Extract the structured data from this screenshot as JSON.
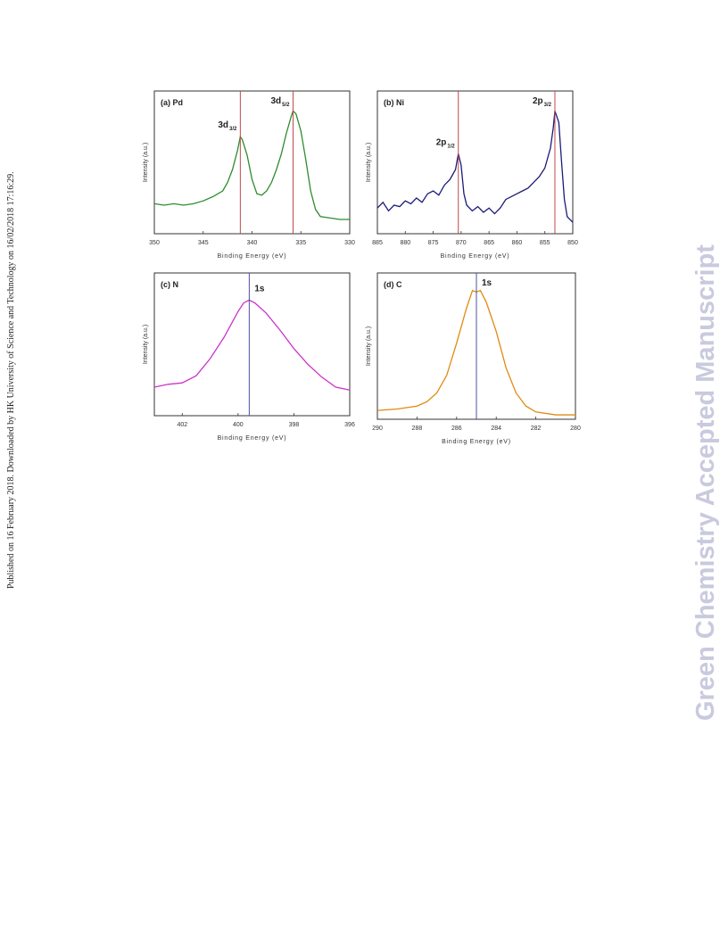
{
  "side_note": "Published on 16 February 2018. Downloaded by HK University of Science and Technology on 16/02/2018 17:16:29.",
  "watermark": "Green Chemistry Accepted Manuscript",
  "chart_data": [
    {
      "type": "line",
      "title": "(a) Pd",
      "x_label": "Binding Energy (eV)",
      "y_label": "Intensity (a.u.)",
      "xlim": [
        350,
        330
      ],
      "xticks": [
        350,
        345,
        340,
        335,
        330
      ],
      "ylim": [
        0,
        100
      ],
      "x": [
        350,
        349,
        348,
        347,
        346,
        345,
        344,
        343,
        342.5,
        342,
        341.5,
        341.2,
        341,
        340.5,
        340,
        339.5,
        339,
        338.5,
        338,
        337.5,
        337,
        336.5,
        336,
        335.8,
        335.5,
        335,
        334.5,
        334,
        333.5,
        333,
        332,
        331,
        330
      ],
      "series": [
        {
          "color": "#2e8b2e",
          "values": [
            21,
            20,
            21,
            20,
            21,
            23,
            26,
            30,
            36,
            45,
            58,
            68,
            66,
            55,
            38,
            28,
            27,
            30,
            36,
            45,
            56,
            70,
            82,
            86,
            84,
            72,
            52,
            30,
            17,
            12,
            11,
            10,
            10
          ]
        }
      ],
      "marker_color": "#c04848",
      "annotations": [
        {
          "x": 341.2,
          "text": "3d",
          "sub": "3/2"
        },
        {
          "x": 335.8,
          "text": "3d",
          "sub": "5/2"
        }
      ]
    },
    {
      "type": "line",
      "title": "(b) Ni",
      "x_label": "Binding Energy (eV)",
      "y_label": "Intensity (a.u.)",
      "xlim": [
        885,
        850
      ],
      "xticks": [
        885,
        880,
        875,
        870,
        865,
        860,
        855,
        850
      ],
      "ylim": [
        0,
        100
      ],
      "x": [
        885,
        884,
        883,
        882,
        881,
        880,
        879,
        878,
        877,
        876,
        875,
        874,
        873,
        872,
        871,
        870.5,
        870,
        869.5,
        869,
        868,
        867,
        866,
        865,
        864,
        863,
        862,
        861,
        860,
        859,
        858,
        857,
        856,
        855,
        854,
        853.5,
        853.2,
        852.5,
        852,
        851.5,
        851,
        850
      ],
      "series": [
        {
          "color": "#1a1a78",
          "values": [
            18,
            22,
            16,
            20,
            19,
            23,
            21,
            25,
            22,
            28,
            30,
            27,
            34,
            38,
            45,
            56,
            48,
            28,
            20,
            16,
            19,
            15,
            18,
            14,
            18,
            24,
            26,
            28,
            30,
            32,
            36,
            40,
            46,
            60,
            74,
            86,
            78,
            50,
            24,
            12,
            8
          ]
        }
      ],
      "marker_color": "#c04848",
      "annotations": [
        {
          "x": 870.5,
          "text": "2p",
          "sub": "1/2"
        },
        {
          "x": 853.2,
          "text": "2p",
          "sub": "3/2"
        }
      ]
    },
    {
      "type": "line",
      "title": "(c) N",
      "x_label": "Binding Energy (eV)",
      "y_label": "Intensity (a.u.)",
      "xlim": [
        403,
        396
      ],
      "xticks": [
        402,
        400,
        398,
        396
      ],
      "ylim": [
        0,
        100
      ],
      "x": [
        403,
        402.5,
        402,
        401.5,
        401,
        400.5,
        400,
        399.8,
        399.6,
        399.4,
        399,
        398.5,
        398,
        397.5,
        397,
        396.5,
        396
      ],
      "series": [
        {
          "color": "#cc33cc",
          "values": [
            20,
            22,
            23,
            28,
            40,
            55,
            73,
            79,
            81,
            79,
            72,
            60,
            47,
            36,
            27,
            20,
            18
          ]
        }
      ],
      "marker_color": "#5050a0",
      "annotations": [
        {
          "x": 399.6,
          "text": "1s"
        }
      ]
    },
    {
      "type": "line",
      "title": "(d) C",
      "x_label": "Binding Energy (eV)",
      "y_label": "Intensity (a.u.)",
      "xlim": [
        290,
        280
      ],
      "xticks": [
        290,
        288,
        286,
        284,
        282,
        280
      ],
      "ylim": [
        0,
        100
      ],
      "x": [
        290,
        289,
        288,
        287.5,
        287,
        286.5,
        286,
        285.5,
        285.2,
        285,
        284.8,
        284.5,
        284,
        283.5,
        283,
        282.5,
        282,
        281,
        280
      ],
      "series": [
        {
          "color": "#e08a10",
          "values": [
            6,
            7,
            9,
            12,
            18,
            30,
            52,
            76,
            88,
            87,
            88,
            80,
            60,
            35,
            18,
            9,
            5,
            3,
            3
          ]
        }
      ],
      "marker_color": "#5050a0",
      "annotations": [
        {
          "x": 285.0,
          "text": "1s"
        }
      ]
    }
  ]
}
